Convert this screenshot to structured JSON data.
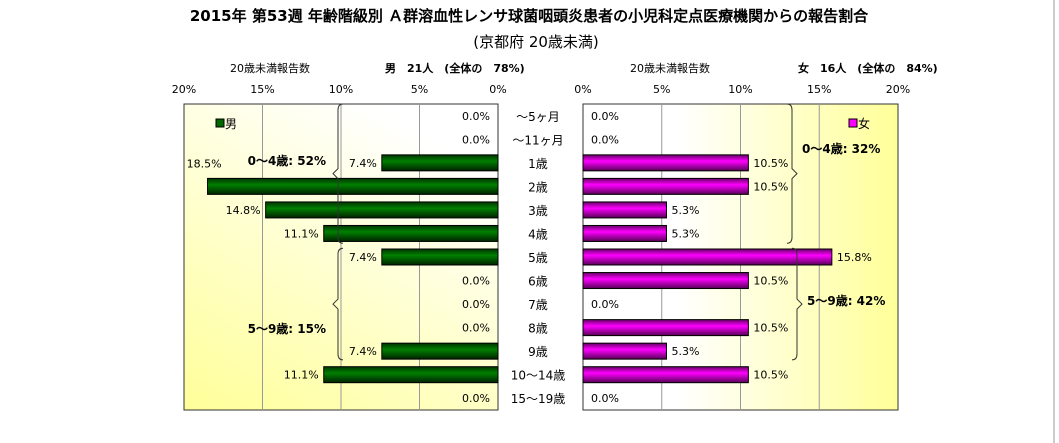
{
  "chart_data": {
    "type": "bar",
    "title": "2015年 第53週 年齢階級別 Ａ群溶血性レンサ球菌咽頭炎患者の小児科定点医療機関からの報告割合",
    "subtitle": "(京都府 20歳未満)",
    "categories": [
      "～5ヶ月",
      "～11ヶ月",
      "1歳",
      "2歳",
      "3歳",
      "4歳",
      "5歳",
      "6歳",
      "7歳",
      "8歳",
      "9歳",
      "10～14歳",
      "15～19歳"
    ],
    "xlim": [
      0,
      20
    ],
    "ticks": [
      "0%",
      "5%",
      "10%",
      "15%",
      "20%"
    ],
    "series": [
      {
        "name": "男",
        "color": "#006600",
        "header_left": "20歳未満報告数",
        "header_right": "男　21人　(全体の　78%)",
        "values": [
          0,
          0,
          7.4,
          18.5,
          14.8,
          11.1,
          7.4,
          0,
          0,
          0,
          7.4,
          11.1,
          0
        ],
        "labels": [
          "0.0%",
          "0.0%",
          "7.4%",
          "18.5%",
          "14.8%",
          "11.1%",
          "7.4%",
          "0.0%",
          "0.0%",
          "0.0%",
          "7.4%",
          "11.1%",
          "0.0%"
        ],
        "groups": [
          "0～4歳: 52%",
          "5～9歳: 15%"
        ]
      },
      {
        "name": "女",
        "color": "#ff00ff",
        "header_left": "20歳未満報告数",
        "header_right": "女　16人　(全体の　84%)",
        "values": [
          0,
          0,
          10.5,
          10.5,
          5.3,
          5.3,
          15.8,
          10.5,
          0,
          10.5,
          5.3,
          10.5,
          0
        ],
        "labels": [
          "0.0%",
          "0.0%",
          "10.5%",
          "10.5%",
          "5.3%",
          "5.3%",
          "15.8%",
          "10.5%",
          "0.0%",
          "10.5%",
          "5.3%",
          "10.5%",
          "0.0%"
        ],
        "groups": [
          "0～4歳: 32%",
          "5～9歳: 42%"
        ]
      }
    ]
  }
}
